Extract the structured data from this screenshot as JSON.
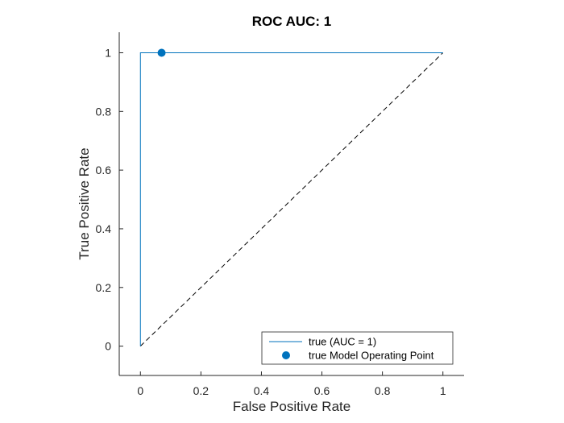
{
  "chart_data": {
    "type": "line",
    "title": "ROC AUC: 1",
    "xlabel": "False Positive Rate",
    "ylabel": "True Positive Rate",
    "xlim": [
      -0.07,
      1.07
    ],
    "ylim": [
      -0.1,
      1.07
    ],
    "xticks": [
      0,
      0.2,
      0.4,
      0.6,
      0.8,
      1
    ],
    "yticks": [
      0,
      0.2,
      0.4,
      0.6,
      0.8,
      1
    ],
    "xtick_labels": [
      "0",
      "0.2",
      "0.4",
      "0.6",
      "0.8",
      "1"
    ],
    "ytick_labels": [
      "0",
      "0.2",
      "0.4",
      "0.6",
      "0.8",
      "1"
    ],
    "grid": false,
    "legend_position": "bottom-right",
    "series": [
      {
        "name": "true (AUC = 1)",
        "kind": "line",
        "color": "#0072BD",
        "x": [
          0,
          0,
          1
        ],
        "y": [
          0,
          1,
          1
        ]
      },
      {
        "name": "true Model Operating Point",
        "kind": "marker",
        "color": "#0072BD",
        "x": [
          0.07
        ],
        "y": [
          1
        ]
      }
    ],
    "reference_line": {
      "style": "dashed",
      "color": "#000000",
      "x": [
        0,
        1
      ],
      "y": [
        0,
        1
      ]
    }
  }
}
